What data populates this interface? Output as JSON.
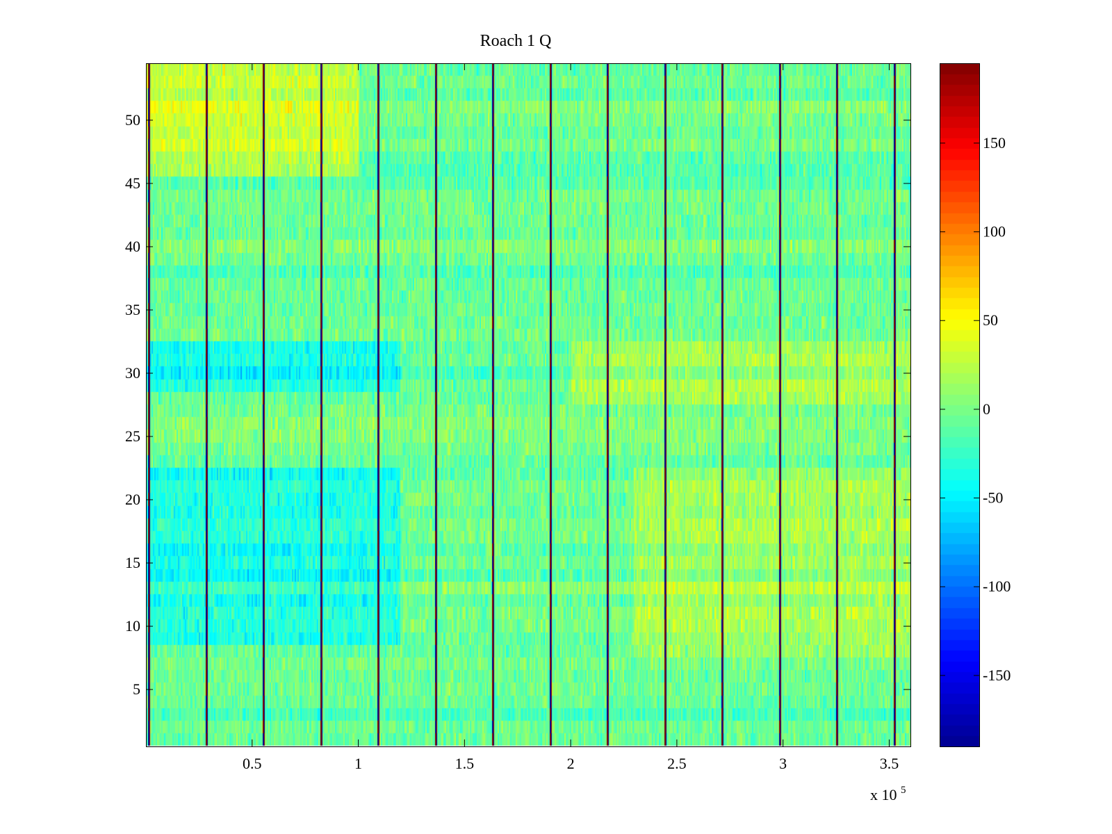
{
  "chart_data": {
    "type": "heatmap",
    "title": "Roach 1 Q",
    "xlabel": "",
    "ylabel": "",
    "x_multiplier_label": {
      "base": "x 10",
      "exponent": "5"
    },
    "xlim": [
      0,
      360000
    ],
    "ylim": [
      0.5,
      54.5
    ],
    "x_ticks": [
      {
        "value": 50000,
        "label": "0.5"
      },
      {
        "value": 100000,
        "label": "1"
      },
      {
        "value": 150000,
        "label": "1.5"
      },
      {
        "value": 200000,
        "label": "2"
      },
      {
        "value": 250000,
        "label": "2.5"
      },
      {
        "value": 300000,
        "label": "3"
      },
      {
        "value": 350000,
        "label": "3.5"
      }
    ],
    "y_ticks": [
      {
        "value": 5,
        "label": "5"
      },
      {
        "value": 10,
        "label": "10"
      },
      {
        "value": 15,
        "label": "15"
      },
      {
        "value": 20,
        "label": "20"
      },
      {
        "value": 25,
        "label": "25"
      },
      {
        "value": 30,
        "label": "30"
      },
      {
        "value": 35,
        "label": "35"
      },
      {
        "value": 40,
        "label": "40"
      },
      {
        "value": 45,
        "label": "45"
      },
      {
        "value": 50,
        "label": "50"
      }
    ],
    "rows": 54,
    "value_range": [
      -190,
      195
    ],
    "background_mean": -5,
    "background_spread": 30,
    "colormap": "jet",
    "colormap_colors": [
      "#00008f",
      "#0000ff",
      "#00ffff",
      "#ffff00",
      "#ff0000",
      "#800000"
    ],
    "colorbar": {
      "range": [
        -190,
        195
      ],
      "ticks": [
        {
          "value": -150,
          "label": "-150"
        },
        {
          "value": -100,
          "label": "-100"
        },
        {
          "value": -50,
          "label": "-50"
        },
        {
          "value": 0,
          "label": "0"
        },
        {
          "value": 50,
          "label": "50"
        },
        {
          "value": 100,
          "label": "100"
        },
        {
          "value": 150,
          "label": "150"
        }
      ]
    },
    "spike_lines_x": [
      1000,
      28000,
      55000,
      82000,
      109000,
      136000,
      163000,
      190000,
      217000,
      244000,
      271000,
      298000,
      325000,
      352000
    ],
    "regional_trends": [
      {
        "x_range": [
          0,
          100000
        ],
        "y_range": [
          46,
          54.5
        ],
        "level": 35
      },
      {
        "x_range": [
          0,
          120000
        ],
        "y_range": [
          9,
          22
        ],
        "level": -30
      },
      {
        "x_range": [
          0,
          120000
        ],
        "y_range": [
          29,
          32
        ],
        "level": -30
      },
      {
        "x_range": [
          200000,
          360000
        ],
        "y_range": [
          28,
          32
        ],
        "level": 25
      },
      {
        "x_range": [
          230000,
          360000
        ],
        "y_range": [
          8,
          22
        ],
        "level": 20
      }
    ]
  }
}
